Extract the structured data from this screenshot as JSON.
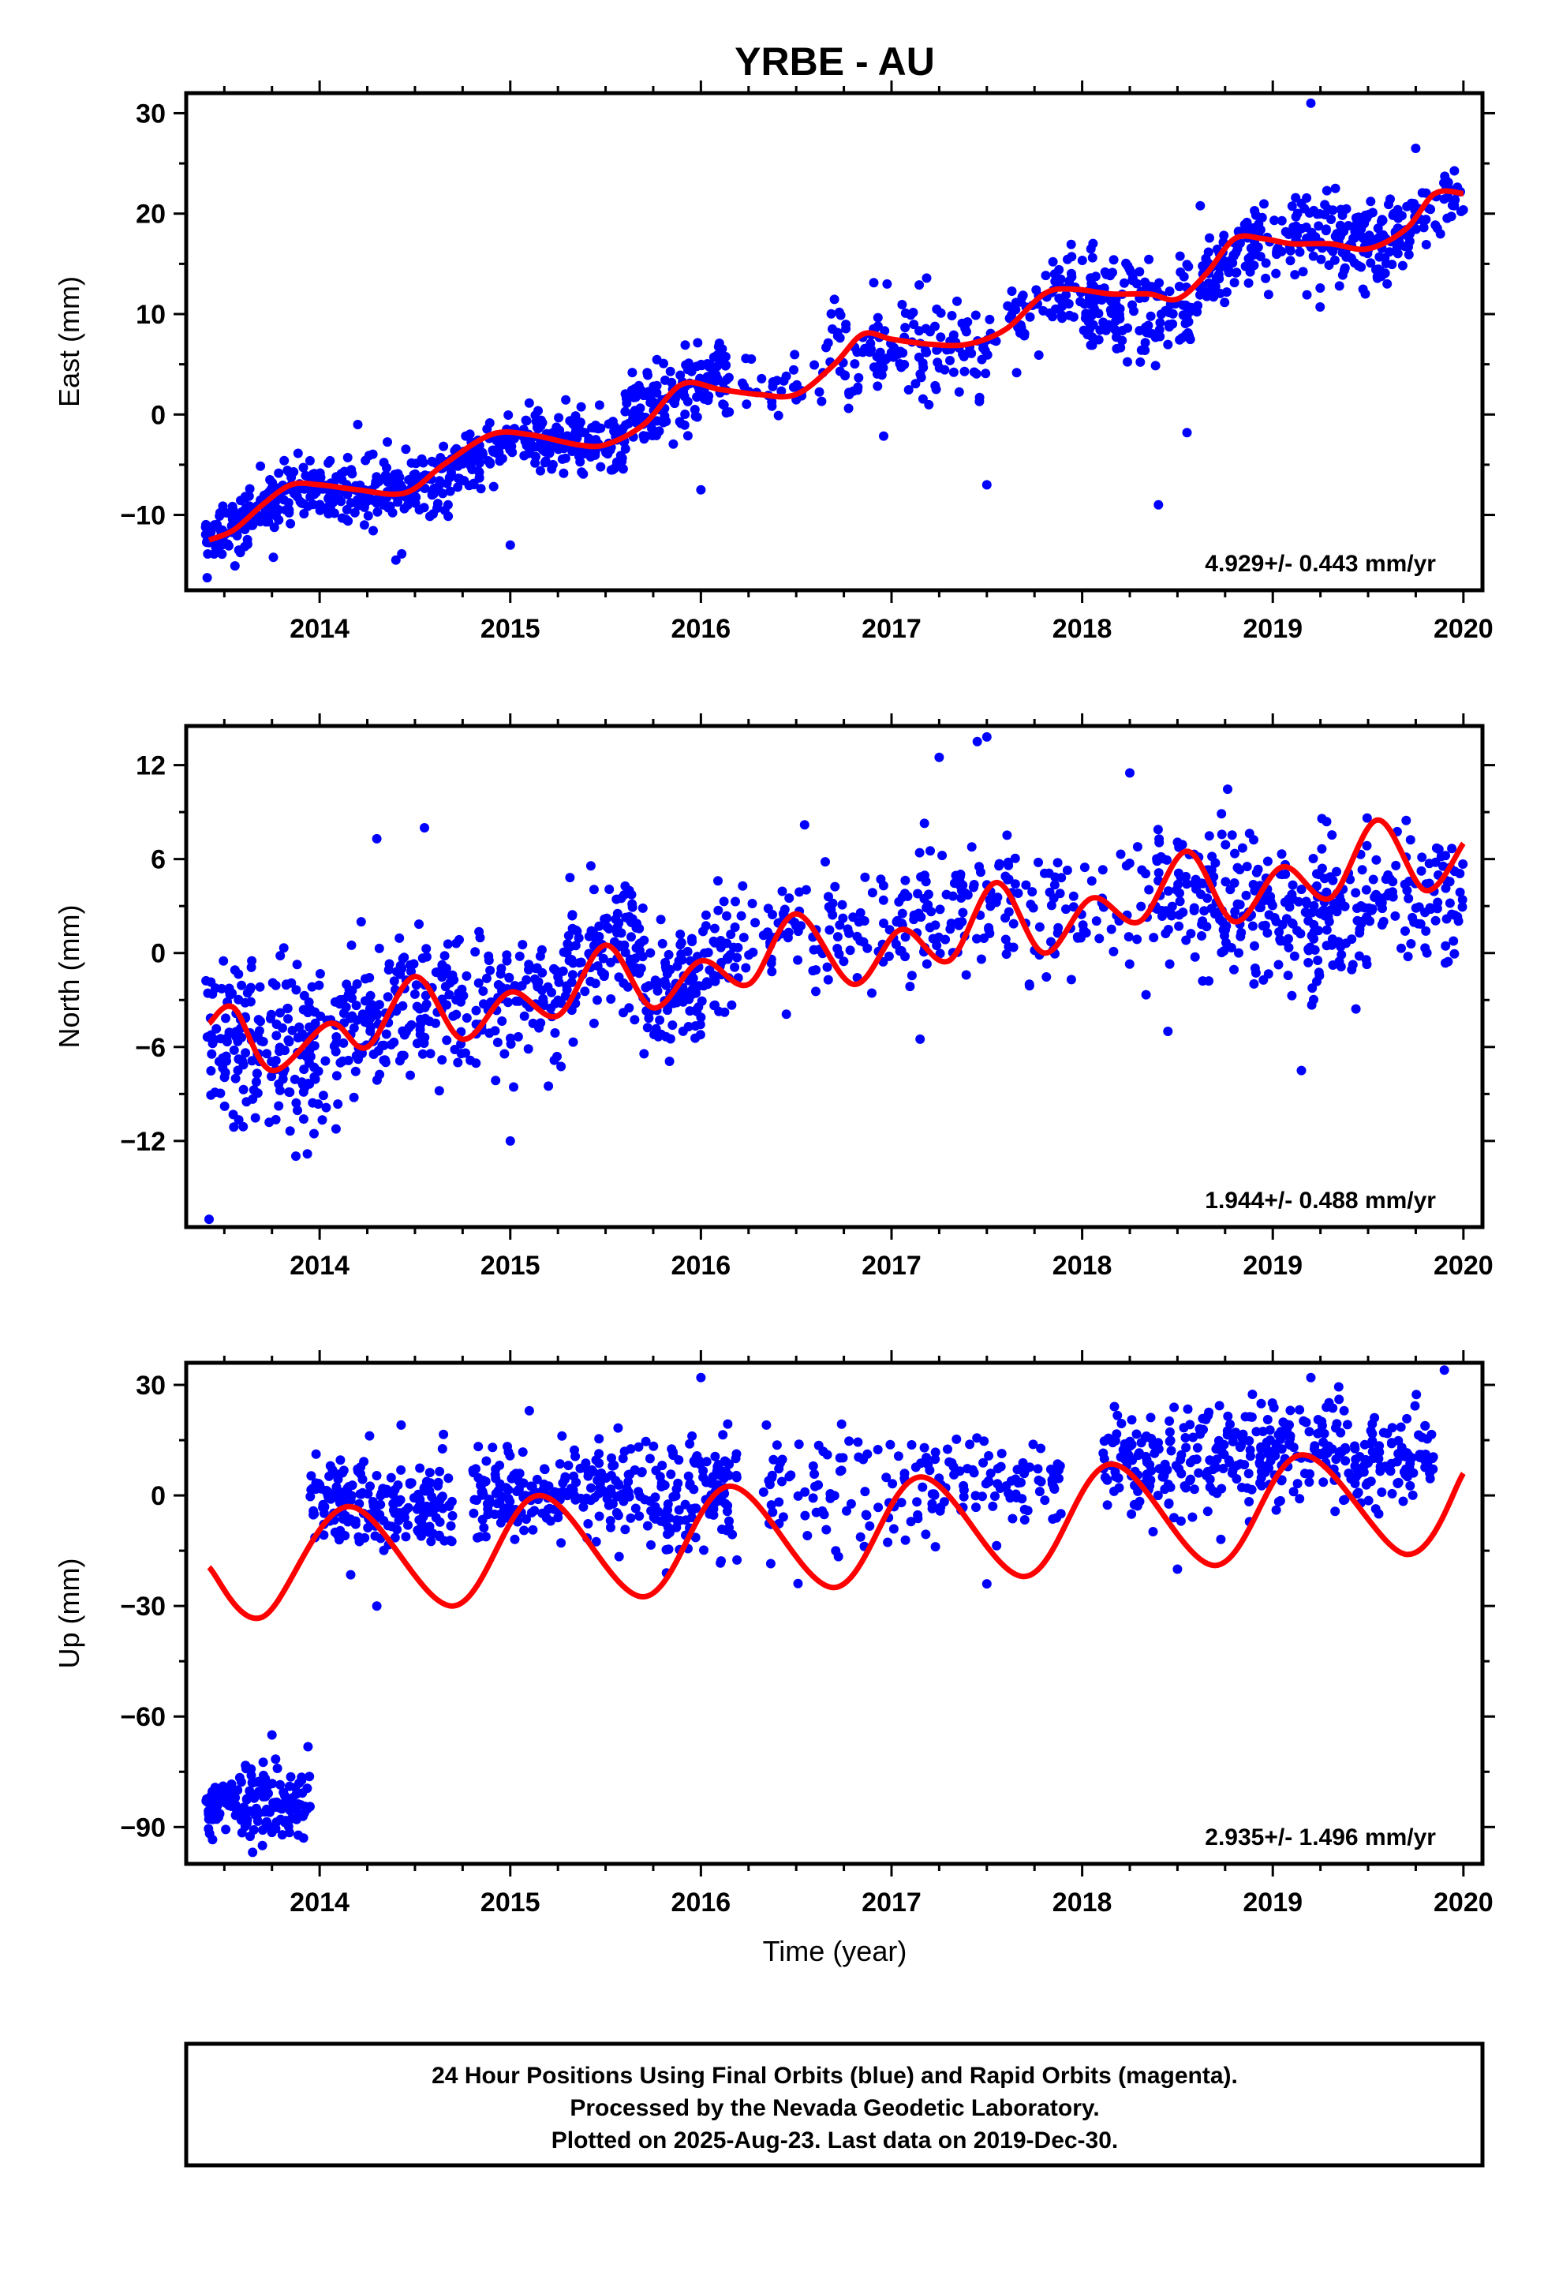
{
  "title": "YRBE - AU",
  "xlabel": "Time (year)",
  "footer": {
    "line1": "24 Hour Positions Using Final Orbits (blue) and Rapid Orbits (magenta).",
    "line2": "Processed by the Nevada Geodetic Laboratory.",
    "line3": "Plotted on 2025-Aug-23. Last data on 2019-Dec-30."
  },
  "colors": {
    "points": "#0000ff",
    "model": "#ff0000"
  },
  "chart_data": [
    {
      "type": "scatter",
      "ylabel": "East (mm)",
      "rate": "4.929+/- 0.443 mm/yr",
      "xlim": [
        2013.3,
        2020.1
      ],
      "ylim": [
        -17.5,
        32
      ],
      "xticks": [
        2014,
        2015,
        2016,
        2017,
        2018,
        2019,
        2020
      ],
      "yticks": [
        -10,
        0,
        10,
        20,
        30
      ],
      "model": {
        "x": [
          2013.42,
          2013.55,
          2013.7,
          2013.85,
          2014.0,
          2014.2,
          2014.45,
          2014.65,
          2014.9,
          2015.1,
          2015.35,
          2015.5,
          2015.7,
          2015.9,
          2016.1,
          2016.3,
          2016.5,
          2016.7,
          2016.85,
          2017.0,
          2017.2,
          2017.4,
          2017.6,
          2017.8,
          2017.95,
          2018.15,
          2018.35,
          2018.5,
          2018.65,
          2018.8,
          2018.95,
          2019.1,
          2019.3,
          2019.5,
          2019.7,
          2019.85,
          2020.0
        ],
        "y": [
          -12.5,
          -11.5,
          -9.0,
          -7.0,
          -7.0,
          -7.5,
          -7.8,
          -5.0,
          -2.0,
          -2.0,
          -3.0,
          -3.0,
          -1.0,
          3.0,
          2.5,
          2.0,
          2.0,
          5.0,
          8.0,
          7.5,
          7.0,
          7.0,
          8.5,
          12.0,
          12.5,
          12.0,
          12.0,
          11.5,
          14.0,
          17.5,
          17.5,
          17.0,
          17.0,
          16.5,
          18.5,
          22.0,
          22.0
        ]
      },
      "outliers": [
        [
          2019.2,
          31.0
        ],
        [
          2018.4,
          -9.0
        ],
        [
          2018.55,
          -1.8
        ],
        [
          2015.0,
          -13.0
        ],
        [
          2016.0,
          -7.5
        ],
        [
          2017.5,
          -7.0
        ],
        [
          2014.2,
          -1.0
        ],
        [
          2014.4,
          -14.5
        ],
        [
          2019.75,
          26.5
        ]
      ],
      "cloud": [
        {
          "x0": 2013.4,
          "x1": 2013.9,
          "y0": -12.5,
          "y1": -7.0,
          "sd": 1.4,
          "n": 150
        },
        {
          "x0": 2013.9,
          "x1": 2014.7,
          "y0": -7.5,
          "y1": -7.0,
          "sd": 1.6,
          "n": 200
        },
        {
          "x0": 2014.7,
          "x1": 2015.1,
          "y0": -5.0,
          "y1": -2.0,
          "sd": 1.5,
          "n": 90
        },
        {
          "x0": 2015.1,
          "x1": 2015.6,
          "y0": -2.5,
          "y1": -3.0,
          "sd": 1.5,
          "n": 140
        },
        {
          "x0": 2015.6,
          "x1": 2016.15,
          "y0": 0.0,
          "y1": 4.5,
          "sd": 2.0,
          "n": 150
        },
        {
          "x0": 2016.2,
          "x1": 2016.65,
          "y0": 2.5,
          "y1": 3.0,
          "sd": 1.5,
          "n": 30
        },
        {
          "x0": 2016.65,
          "x1": 2017.55,
          "y0": 6.0,
          "y1": 7.0,
          "sd": 2.2,
          "n": 140
        },
        {
          "x0": 2017.6,
          "x1": 2018.0,
          "y0": 9.0,
          "y1": 13.0,
          "sd": 1.8,
          "n": 60
        },
        {
          "x0": 2018.0,
          "x1": 2018.6,
          "y0": 11.0,
          "y1": 10.0,
          "sd": 2.5,
          "n": 150
        },
        {
          "x0": 2018.6,
          "x1": 2019.0,
          "y0": 13.0,
          "y1": 18.0,
          "sd": 2.2,
          "n": 90
        },
        {
          "x0": 2019.0,
          "x1": 2019.6,
          "y0": 18.0,
          "y1": 17.0,
          "sd": 2.2,
          "n": 150
        },
        {
          "x0": 2019.6,
          "x1": 2020.0,
          "y0": 18.0,
          "y1": 22.0,
          "sd": 2.0,
          "n": 70
        }
      ]
    },
    {
      "type": "scatter",
      "ylabel": "North (mm)",
      "rate": "1.944+/- 0.488 mm/yr",
      "xlim": [
        2013.3,
        2020.1
      ],
      "ylim": [
        -17.5,
        14.5
      ],
      "xticks": [
        2014,
        2015,
        2016,
        2017,
        2018,
        2019,
        2020
      ],
      "yticks": [
        -12,
        -6,
        0,
        6,
        12
      ],
      "model": {
        "x": [
          2013.42,
          2013.55,
          2013.75,
          2014.05,
          2014.25,
          2014.5,
          2014.75,
          2015.0,
          2015.25,
          2015.5,
          2015.75,
          2016.0,
          2016.25,
          2016.5,
          2016.8,
          2017.05,
          2017.3,
          2017.55,
          2017.8,
          2018.05,
          2018.3,
          2018.55,
          2018.8,
          2019.05,
          2019.3,
          2019.55,
          2019.8,
          2020.0
        ],
        "y": [
          -4.5,
          -3.5,
          -7.5,
          -4.5,
          -6.0,
          -1.5,
          -5.5,
          -2.5,
          -4.0,
          0.5,
          -3.5,
          -0.5,
          -2.0,
          2.5,
          -2.0,
          1.5,
          -0.5,
          4.5,
          0.0,
          3.5,
          2.0,
          6.5,
          2.0,
          5.5,
          3.5,
          8.5,
          4.0,
          7.0
        ]
      },
      "outliers": [
        [
          2017.25,
          12.5
        ],
        [
          2017.45,
          13.5
        ],
        [
          2013.42,
          -17.0
        ],
        [
          2015.0,
          -12.0
        ],
        [
          2017.5,
          13.8
        ],
        [
          2014.55,
          8.0
        ],
        [
          2014.3,
          7.3
        ],
        [
          2019.15,
          -7.5
        ],
        [
          2018.45,
          -5.0
        ],
        [
          2017.15,
          -5.5
        ],
        [
          2018.25,
          11.5
        ],
        [
          2015.2,
          -8.5
        ]
      ],
      "cloud": [
        {
          "x0": 2013.4,
          "x1": 2014.1,
          "y0": -5.0,
          "y1": -6.5,
          "sd": 2.5,
          "n": 200
        },
        {
          "x0": 2014.1,
          "x1": 2014.7,
          "y0": -5.0,
          "y1": -2.0,
          "sd": 2.0,
          "n": 150
        },
        {
          "x0": 2014.7,
          "x1": 2015.3,
          "y0": -4.0,
          "y1": -2.5,
          "sd": 2.0,
          "n": 120
        },
        {
          "x0": 2015.3,
          "x1": 2015.7,
          "y0": 0.0,
          "y1": 1.0,
          "sd": 2.0,
          "n": 110
        },
        {
          "x0": 2015.7,
          "x1": 2016.2,
          "y0": -3.0,
          "y1": 0.0,
          "sd": 2.2,
          "n": 130
        },
        {
          "x0": 2016.2,
          "x1": 2017.0,
          "y0": 1.0,
          "y1": 2.0,
          "sd": 1.8,
          "n": 90
        },
        {
          "x0": 2017.0,
          "x1": 2017.7,
          "y0": 2.0,
          "y1": 3.0,
          "sd": 2.2,
          "n": 110
        },
        {
          "x0": 2017.7,
          "x1": 2018.3,
          "y0": 2.0,
          "y1": 3.0,
          "sd": 2.0,
          "n": 60
        },
        {
          "x0": 2018.3,
          "x1": 2019.0,
          "y0": 4.0,
          "y1": 3.0,
          "sd": 2.5,
          "n": 150
        },
        {
          "x0": 2019.0,
          "x1": 2019.5,
          "y0": 1.5,
          "y1": 3.0,
          "sd": 2.2,
          "n": 130
        },
        {
          "x0": 2019.5,
          "x1": 2020.0,
          "y0": 4.0,
          "y1": 3.0,
          "sd": 2.0,
          "n": 90
        }
      ]
    },
    {
      "type": "scatter",
      "ylabel": "Up (mm)",
      "rate": "2.935+/- 1.496 mm/yr",
      "xlim": [
        2013.3,
        2020.1
      ],
      "ylim": [
        -100,
        36
      ],
      "xticks": [
        2014,
        2015,
        2016,
        2017,
        2018,
        2019,
        2020
      ],
      "yticks": [
        -90,
        -60,
        -30,
        0,
        30
      ],
      "model": {
        "x": [
          2013.42,
          2013.7,
          2014.15,
          2014.7,
          2015.15,
          2015.7,
          2016.15,
          2016.7,
          2017.15,
          2017.7,
          2018.15,
          2018.7,
          2019.15,
          2019.7,
          2020.0
        ],
        "y": [
          -19.5,
          -33.0,
          -3.0,
          -30.0,
          0.0,
          -27.5,
          2.5,
          -25.0,
          5.0,
          -22.0,
          8.5,
          -19.0,
          11.0,
          -16.0,
          6.0
        ]
      },
      "outliers": [
        [
          2019.2,
          32.0
        ],
        [
          2016.0,
          32.0
        ],
        [
          2019.9,
          34.0
        ],
        [
          2014.3,
          -30.0
        ],
        [
          2017.5,
          -24.0
        ],
        [
          2018.5,
          -20.0
        ],
        [
          2015.1,
          23.0
        ],
        [
          2013.7,
          -95.0
        ],
        [
          2013.75,
          -65.0
        ]
      ],
      "cloud": [
        {
          "x0": 2013.4,
          "x1": 2013.95,
          "y0": -85.0,
          "y1": -82.0,
          "sd": 5.0,
          "n": 160
        },
        {
          "x0": 2013.95,
          "x1": 2014.7,
          "y0": -2.0,
          "y1": -3.0,
          "sd": 6.0,
          "n": 200
        },
        {
          "x0": 2014.8,
          "x1": 2015.7,
          "y0": -1.0,
          "y1": 2.0,
          "sd": 6.0,
          "n": 200
        },
        {
          "x0": 2015.7,
          "x1": 2016.2,
          "y0": -3.0,
          "y1": 3.0,
          "sd": 8.0,
          "n": 130
        },
        {
          "x0": 2016.3,
          "x1": 2017.0,
          "y0": 0.0,
          "y1": 3.0,
          "sd": 9.0,
          "n": 70
        },
        {
          "x0": 2017.0,
          "x1": 2017.9,
          "y0": 2.0,
          "y1": 3.0,
          "sd": 7.0,
          "n": 110
        },
        {
          "x0": 2018.1,
          "x1": 2018.8,
          "y0": 8.0,
          "y1": 10.0,
          "sd": 7.0,
          "n": 150
        },
        {
          "x0": 2018.8,
          "x1": 2019.4,
          "y0": 10.0,
          "y1": 13.0,
          "sd": 7.0,
          "n": 140
        },
        {
          "x0": 2019.4,
          "x1": 2019.85,
          "y0": 8.0,
          "y1": 10.0,
          "sd": 6.0,
          "n": 100
        }
      ]
    }
  ]
}
